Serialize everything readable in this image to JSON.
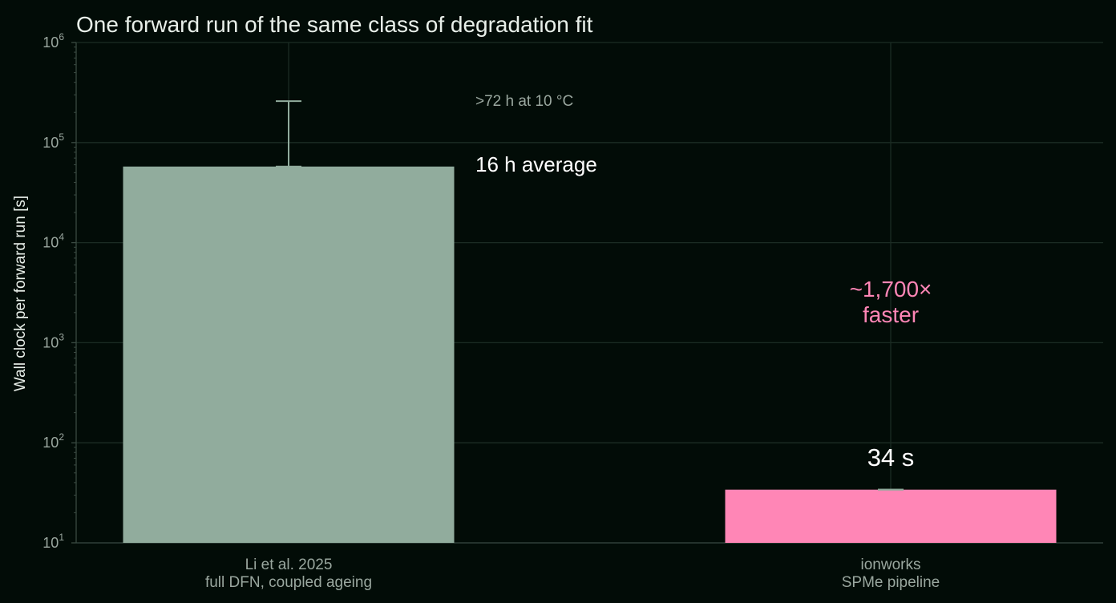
{
  "chart_data": {
    "type": "bar",
    "title": "One forward run of the same class of degradation fit",
    "ylabel": "Wall clock per forward run [s]",
    "yscale": "log",
    "ylim": [
      10,
      1000000
    ],
    "yticks": [
      {
        "base": "10",
        "exp": "1",
        "value": 10
      },
      {
        "base": "10",
        "exp": "2",
        "value": 100
      },
      {
        "base": "10",
        "exp": "3",
        "value": 1000
      },
      {
        "base": "10",
        "exp": "4",
        "value": 10000
      },
      {
        "base": "10",
        "exp": "5",
        "value": 100000
      },
      {
        "base": "10",
        "exp": "6",
        "value": 1000000
      }
    ],
    "grid": true,
    "bars": [
      {
        "label_line1": "Li et al. 2025",
        "label_line2": "full DFN, coupled ageing",
        "value": 57600,
        "error_upper": 259200,
        "color": "#91ac9d",
        "value_label": "16 h average",
        "error_label": ">72 h at 10 °C"
      },
      {
        "label_line1": "ionworks",
        "label_line2": "SPMe pipeline",
        "value": 34,
        "error_upper": 34,
        "color": "#ff86b6",
        "value_label": "34 s"
      }
    ],
    "annotation": {
      "line1": "~1,700×",
      "line2": "faster",
      "color": "#ff86b6"
    },
    "colors": {
      "background": "#020c07",
      "grid": "#1c2c24",
      "axis": "#3a4a42",
      "error_bar": "#91ac9d"
    }
  }
}
